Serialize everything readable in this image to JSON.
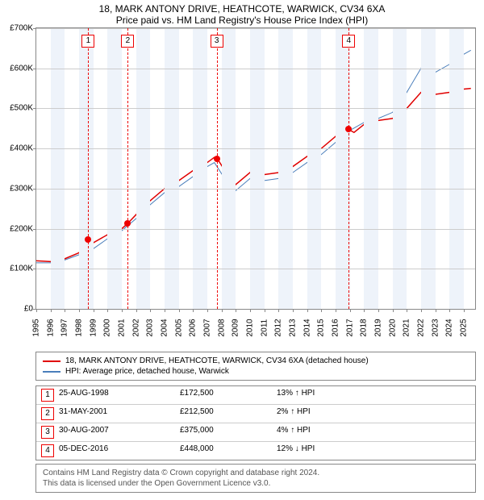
{
  "title": "18, MARK ANTONY DRIVE, HEATHCOTE, WARWICK, CV34 6XA",
  "subtitle": "Price paid vs. HM Land Registry's House Price Index (HPI)",
  "chart": {
    "type": "line",
    "ylim": [
      0,
      700000
    ],
    "ytick_step": 100000,
    "yticks": [
      "£0",
      "£100K",
      "£200K",
      "£300K",
      "£400K",
      "£500K",
      "£600K",
      "£700K"
    ],
    "xlim": [
      1995,
      2025.8
    ],
    "xticks": [
      1995,
      1996,
      1997,
      1998,
      1999,
      2000,
      2001,
      2002,
      2003,
      2004,
      2005,
      2006,
      2007,
      2008,
      2009,
      2010,
      2011,
      2012,
      2013,
      2014,
      2015,
      2016,
      2017,
      2018,
      2019,
      2020,
      2021,
      2022,
      2023,
      2024,
      2025
    ],
    "band_color": "#eef3fa",
    "grid_color": "#cccccc",
    "series": {
      "red": {
        "color": "#e00000",
        "width": 1.5,
        "label": "18, MARK ANTONY DRIVE, HEATHCOTE, WARWICK, CV34 6XA (detached house)",
        "points": [
          [
            1995.0,
            120000
          ],
          [
            1996.0,
            118000
          ],
          [
            1997.0,
            125000
          ],
          [
            1998.0,
            140000
          ],
          [
            1998.6,
            172500
          ],
          [
            1999.0,
            165000
          ],
          [
            2000.0,
            185000
          ],
          [
            2001.0,
            200000
          ],
          [
            2001.4,
            212500
          ],
          [
            2002.0,
            235000
          ],
          [
            2003.0,
            270000
          ],
          [
            2004.0,
            300000
          ],
          [
            2005.0,
            320000
          ],
          [
            2006.0,
            345000
          ],
          [
            2007.0,
            365000
          ],
          [
            2007.5,
            378000
          ],
          [
            2007.7,
            375000
          ],
          [
            2008.5,
            330000
          ],
          [
            2009.0,
            310000
          ],
          [
            2010.0,
            340000
          ],
          [
            2011.0,
            335000
          ],
          [
            2012.0,
            340000
          ],
          [
            2013.0,
            355000
          ],
          [
            2014.0,
            380000
          ],
          [
            2015.0,
            400000
          ],
          [
            2016.0,
            430000
          ],
          [
            2016.9,
            448000
          ],
          [
            2017.3,
            440000
          ],
          [
            2018.0,
            460000
          ],
          [
            2019.0,
            470000
          ],
          [
            2020.0,
            475000
          ],
          [
            2021.0,
            500000
          ],
          [
            2022.0,
            540000
          ],
          [
            2023.0,
            535000
          ],
          [
            2024.0,
            540000
          ],
          [
            2025.0,
            548000
          ],
          [
            2025.5,
            550000
          ]
        ]
      },
      "blue": {
        "color": "#4a7ebb",
        "width": 1,
        "label": "HPI: Average price, detached house, Warwick",
        "points": [
          [
            1995.0,
            115000
          ],
          [
            1996.0,
            115000
          ],
          [
            1997.0,
            122000
          ],
          [
            1998.0,
            135000
          ],
          [
            1999.0,
            150000
          ],
          [
            2000.0,
            175000
          ],
          [
            2001.0,
            195000
          ],
          [
            2002.0,
            225000
          ],
          [
            2003.0,
            260000
          ],
          [
            2004.0,
            290000
          ],
          [
            2005.0,
            305000
          ],
          [
            2006.0,
            330000
          ],
          [
            2007.0,
            355000
          ],
          [
            2007.5,
            365000
          ],
          [
            2008.5,
            310000
          ],
          [
            2009.0,
            295000
          ],
          [
            2010.0,
            325000
          ],
          [
            2011.0,
            320000
          ],
          [
            2012.0,
            325000
          ],
          [
            2013.0,
            340000
          ],
          [
            2014.0,
            365000
          ],
          [
            2015.0,
            385000
          ],
          [
            2016.0,
            415000
          ],
          [
            2017.0,
            445000
          ],
          [
            2018.0,
            465000
          ],
          [
            2019.0,
            475000
          ],
          [
            2020.0,
            490000
          ],
          [
            2021.0,
            540000
          ],
          [
            2022.0,
            600000
          ],
          [
            2023.0,
            590000
          ],
          [
            2024.0,
            610000
          ],
          [
            2025.0,
            635000
          ],
          [
            2025.5,
            645000
          ]
        ]
      }
    },
    "markers": [
      {
        "n": "1",
        "x": 1998.65,
        "y": 172500,
        "box_top": 8
      },
      {
        "n": "2",
        "x": 2001.42,
        "y": 212500,
        "box_top": 8
      },
      {
        "n": "3",
        "x": 2007.66,
        "y": 375000,
        "box_top": 8
      },
      {
        "n": "4",
        "x": 2016.93,
        "y": 448000,
        "box_top": 8
      }
    ]
  },
  "legend": [
    {
      "color": "#e00000",
      "label": "18, MARK ANTONY DRIVE, HEATHCOTE, WARWICK, CV34 6XA (detached house)"
    },
    {
      "color": "#4a7ebb",
      "label": "HPI: Average price, detached house, Warwick"
    }
  ],
  "table": [
    {
      "n": "1",
      "date": "25-AUG-1998",
      "price": "£172,500",
      "pct": "13% ↑ HPI"
    },
    {
      "n": "2",
      "date": "31-MAY-2001",
      "price": "£212,500",
      "pct": "2% ↑ HPI"
    },
    {
      "n": "3",
      "date": "30-AUG-2007",
      "price": "£375,000",
      "pct": "4% ↑ HPI"
    },
    {
      "n": "4",
      "date": "05-DEC-2016",
      "price": "£448,000",
      "pct": "12% ↓ HPI"
    }
  ],
  "footer": {
    "l1": "Contains HM Land Registry data © Crown copyright and database right 2024.",
    "l2": "This data is licensed under the Open Government Licence v3.0."
  }
}
